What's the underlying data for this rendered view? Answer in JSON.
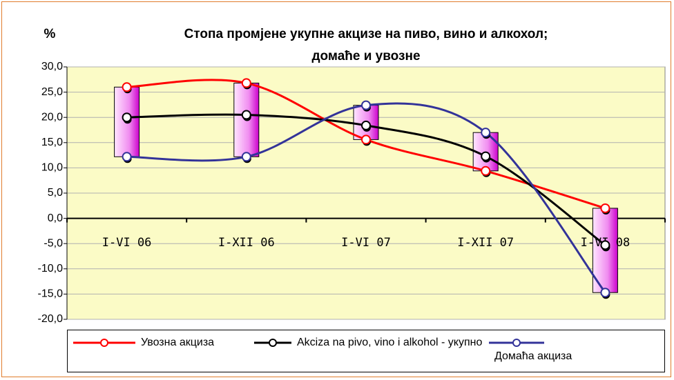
{
  "chart_data": {
    "type": "line",
    "title": [
      "Стопа промјене укупне акцизе на пиво, вино и алкохол;",
      "домаће и увозне"
    ],
    "ylabel": "%",
    "categories": [
      "I-VI 06",
      "I-XII 06",
      "I-VI 07",
      "I-XII 07",
      "I-VI 08"
    ],
    "series": [
      {
        "name": "Увозна акциза",
        "color": "#ff0000",
        "values": [
          26.0,
          26.8,
          15.6,
          9.4,
          2.0
        ]
      },
      {
        "name": "Akciza na pivo, vino i alkohol - укупно",
        "color": "#000000",
        "values": [
          20.0,
          20.5,
          18.4,
          12.3,
          -5.3
        ]
      },
      {
        "name": "Домаћа акциза",
        "color": "#333399",
        "values": [
          12.2,
          12.2,
          22.4,
          17.0,
          -14.7
        ]
      }
    ],
    "ylim": [
      -20,
      30
    ],
    "yticks": [
      {
        "value": -20,
        "label": "-20,0"
      },
      {
        "value": -15,
        "label": "-15,0"
      },
      {
        "value": -10,
        "label": "-10,0"
      },
      {
        "value": -5,
        "label": "-5,0"
      },
      {
        "value": 0,
        "label": "0,0"
      },
      {
        "value": 5,
        "label": "5,0"
      },
      {
        "value": 10,
        "label": "10,0"
      },
      {
        "value": 15,
        "label": "15,0"
      },
      {
        "value": 20,
        "label": "20,0"
      },
      {
        "value": 25,
        "label": "25,0"
      },
      {
        "value": 30,
        "label": "30,0"
      }
    ],
    "grid": true,
    "smooth": true,
    "high_low_bars": true,
    "plot_background": "#fbfbc6"
  }
}
